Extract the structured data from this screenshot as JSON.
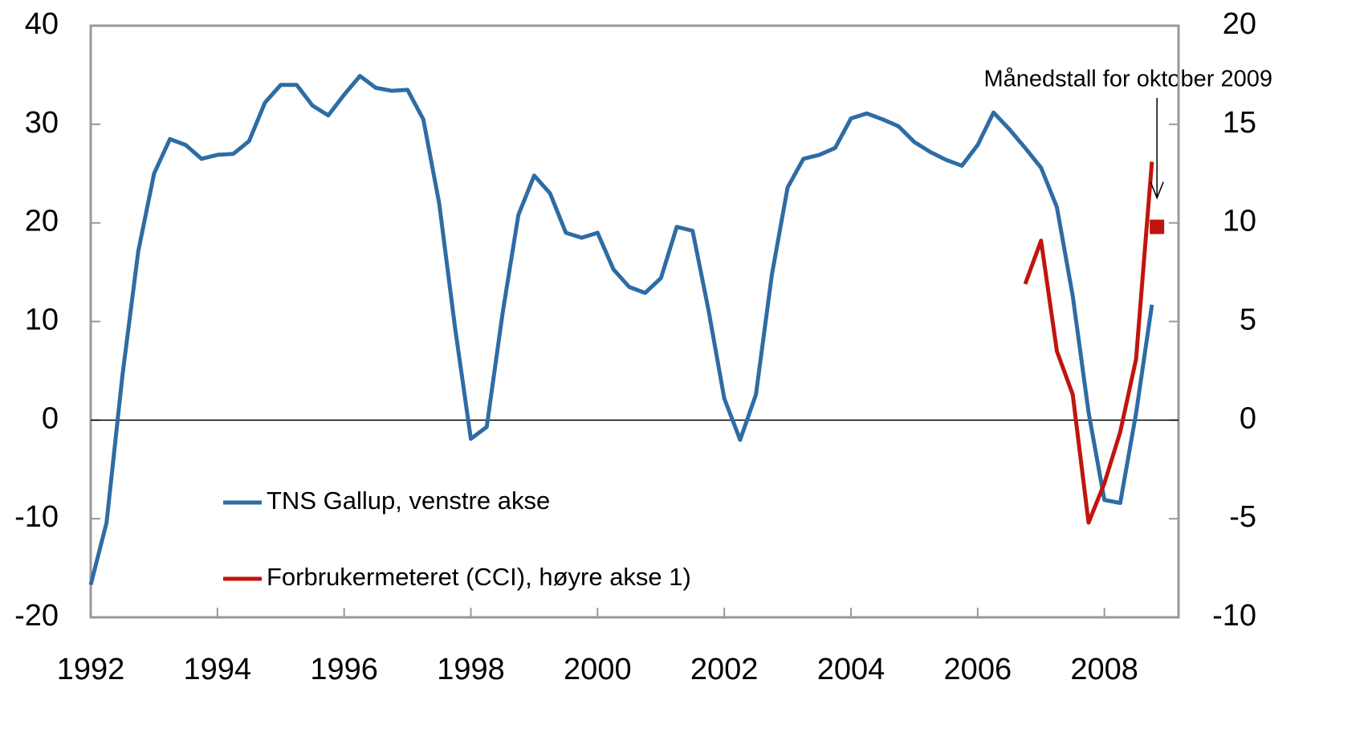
{
  "chart_data": {
    "type": "line",
    "xlim": [
      1992,
      2009.17
    ],
    "xticks": [
      1992,
      1994,
      1996,
      1998,
      2000,
      2002,
      2004,
      2006,
      2008
    ],
    "ylim": [
      -20,
      40
    ],
    "yticks": [
      -20,
      -10,
      0,
      10,
      20,
      30,
      40
    ],
    "y2lim": [
      -10,
      20
    ],
    "y2ticks": [
      -10,
      -5,
      0,
      5,
      10,
      15,
      20
    ],
    "series": [
      {
        "name": "TNS Gallup, venstre akse",
        "color": "#2e6ca4",
        "x": [
          1992.0,
          1992.25,
          1992.5,
          1992.75,
          1993.0,
          1993.25,
          1993.5,
          1993.75,
          1994.0,
          1994.25,
          1994.5,
          1994.75,
          1995.0,
          1995.25,
          1995.5,
          1995.75,
          1996.0,
          1996.25,
          1996.5,
          1996.75,
          1997.0,
          1997.25,
          1997.5,
          1997.75,
          1998.0,
          1998.25,
          1998.5,
          1998.75,
          1999.0,
          1999.25,
          1999.5,
          1999.75,
          2000.0,
          2000.25,
          2000.5,
          2000.75,
          2001.0,
          2001.25,
          2001.5,
          2001.75,
          2002.0,
          2002.25,
          2002.5,
          2002.75,
          2003.0,
          2003.25,
          2003.5,
          2003.75,
          2004.0,
          2004.25,
          2004.5,
          2004.75,
          2005.0,
          2005.25,
          2005.5,
          2005.75,
          2006.0,
          2006.25,
          2006.5,
          2006.75,
          2007.0,
          2007.25,
          2007.5,
          2007.75,
          2008.0,
          2008.25,
          2008.5,
          2008.75
        ],
        "values": [
          -16.7,
          -10.4,
          4.5,
          17.1,
          25.0,
          28.5,
          27.9,
          26.5,
          26.9,
          27.0,
          28.3,
          32.2,
          34.0,
          34.0,
          31.9,
          30.9,
          33.0,
          34.9,
          33.7,
          33.4,
          33.5,
          30.5,
          22.0,
          9.4,
          -1.9,
          -0.7,
          10.8,
          20.8,
          24.8,
          23.0,
          19.0,
          18.5,
          19.0,
          15.3,
          13.5,
          12.9,
          14.4,
          19.6,
          19.2,
          11.2,
          2.2,
          -2.0,
          2.6,
          14.7,
          23.6,
          26.5,
          26.9,
          27.6,
          30.6,
          31.1,
          30.5,
          29.8,
          28.2,
          27.2,
          26.4,
          25.8,
          27.9,
          31.2,
          29.5,
          27.6,
          25.6,
          21.6,
          12.6,
          0.8,
          -8.1,
          -8.4,
          0.7,
          11.7
        ]
      },
      {
        "name": "Forbrukermeteret (CCI), høyre akse 1)",
        "color": "#c0150f",
        "axis": "y2",
        "x": [
          2006.75,
          2007.0,
          2007.25,
          2007.5,
          2007.75,
          2008.0,
          2008.25,
          2008.5,
          2008.75
        ],
        "values": [
          6.9,
          9.1,
          3.5,
          1.3,
          -5.2,
          -3.2,
          -0.6,
          3.1,
          13.1
        ]
      }
    ],
    "annotation": {
      "text": "Månedstall for oktober 2009",
      "x": 2008.83,
      "value": 9.8,
      "axis": "y2",
      "color": "#c0150f"
    }
  }
}
